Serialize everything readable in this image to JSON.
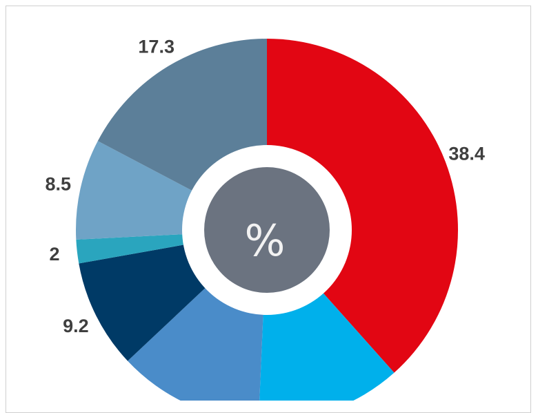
{
  "chart_data": {
    "type": "pie",
    "variant": "donut",
    "center_label": "%",
    "slices": [
      {
        "value": 38.4,
        "label": "38.4",
        "color": "#e20613"
      },
      {
        "value": 12.3,
        "label": "",
        "color": "#00b0eb"
      },
      {
        "value": 12.3,
        "label": "",
        "color": "#4a8cc9"
      },
      {
        "value": 9.2,
        "label": "9.2",
        "color": "#003a66"
      },
      {
        "value": 2,
        "label": "2",
        "color": "#2aa5be"
      },
      {
        "value": 8.5,
        "label": "8.5",
        "color": "#6fa3c6"
      },
      {
        "value": 17.3,
        "label": "17.3",
        "color": "#5c7f99"
      }
    ],
    "colors": {
      "hole_ring": "#ffffff",
      "center_disk": "#6b7380",
      "center_text": "#f2f2f2",
      "label_text": "#3f3f3f"
    }
  }
}
